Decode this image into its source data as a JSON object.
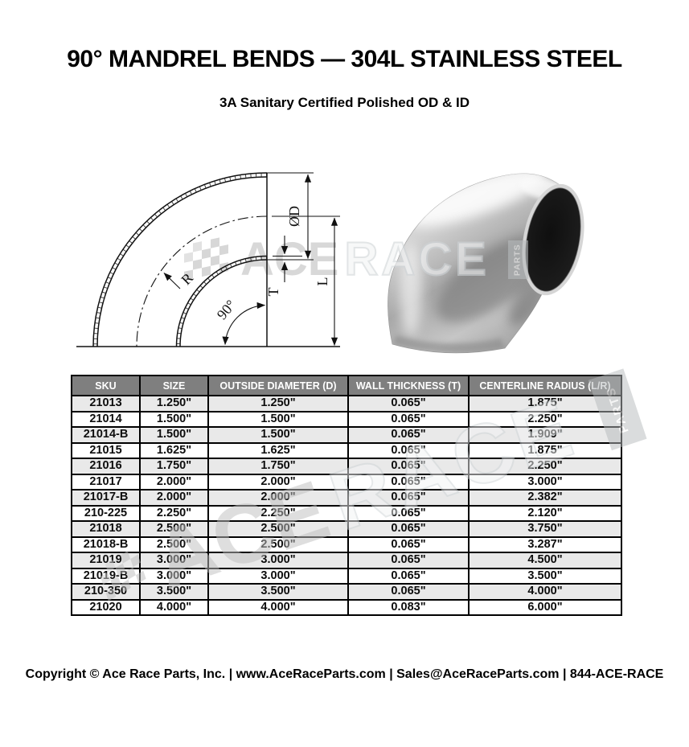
{
  "header": {
    "title": "90° MANDREL BENDS — 304L STAINLESS STEEL",
    "subtitle": "3A Sanitary Certified Polished OD & ID"
  },
  "diagram": {
    "labels": {
      "diameter": "ØD",
      "thickness": "T",
      "length": "L",
      "radius": "R",
      "angle": "90°"
    }
  },
  "watermark": {
    "ace": "ACE",
    "race": "RACE",
    "parts": "PARTS"
  },
  "table": {
    "columns": [
      "SKU",
      "SIZE",
      "OUTSIDE DIAMETER (D)",
      "WALL THICKNESS (T)",
      "CENTERLINE RADIUS (L/R)"
    ],
    "rows": [
      [
        "21013",
        "1.250\"",
        "1.250\"",
        "0.065\"",
        "1.875\""
      ],
      [
        "21014",
        "1.500\"",
        "1.500\"",
        "0.065\"",
        "2.250\""
      ],
      [
        "21014-B",
        "1.500\"",
        "1.500\"",
        "0.065\"",
        "1.909\""
      ],
      [
        "21015",
        "1.625\"",
        "1.625\"",
        "0.065\"",
        "1.875\""
      ],
      [
        "21016",
        "1.750\"",
        "1.750\"",
        "0.065\"",
        "2.250\""
      ],
      [
        "21017",
        "2.000\"",
        "2.000\"",
        "0.065\"",
        "3.000\""
      ],
      [
        "21017-B",
        "2.000\"",
        "2.000\"",
        "0.065\"",
        "2.382\""
      ],
      [
        "210-225",
        "2.250\"",
        "2.250\"",
        "0.065\"",
        "2.120\""
      ],
      [
        "21018",
        "2.500\"",
        "2.500\"",
        "0.065\"",
        "3.750\""
      ],
      [
        "21018-B",
        "2.500\"",
        "2.500\"",
        "0.065\"",
        "3.287\""
      ],
      [
        "21019",
        "3.000\"",
        "3.000\"",
        "0.065\"",
        "4.500\""
      ],
      [
        "21019-B",
        "3.000\"",
        "3.000\"",
        "0.065\"",
        "3.500\""
      ],
      [
        "210-350",
        "3.500\"",
        "3.500\"",
        "0.065\"",
        "4.000\""
      ],
      [
        "21020",
        "4.000\"",
        "4.000\"",
        "0.083\"",
        "6.000\""
      ]
    ]
  },
  "footer": {
    "text": "Copyright © Ace Race Parts, Inc. | www.AceRaceParts.com | Sales@AceRaceParts.com | 844-ACE-RACE"
  },
  "colors": {
    "table_header_bg": "#7f7f7f",
    "table_row_alt": "#e9e9e9",
    "table_border": "#000000",
    "watermark_gray": "#bfbfbf",
    "steel_opening": "#1a1a1a"
  }
}
